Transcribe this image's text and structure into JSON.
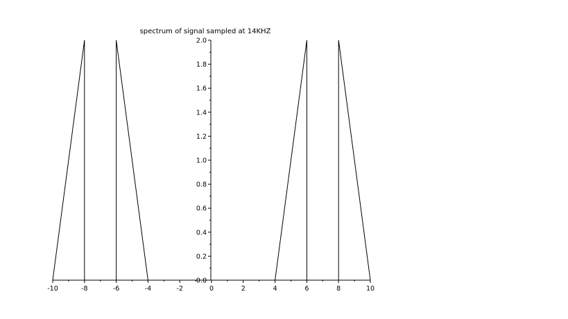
{
  "chart_data": {
    "type": "line",
    "title": "spectrum of signal sampled at 14KHZ",
    "xlabel": "",
    "ylabel": "",
    "xlim": [
      -10,
      10
    ],
    "ylim": [
      0,
      2
    ],
    "grid": false,
    "x_ticks": [
      -10,
      -8,
      -6,
      -4,
      -2,
      0,
      2,
      4,
      6,
      8,
      10
    ],
    "x_tick_labels": [
      "-10",
      "-8",
      "-6",
      "-4",
      "-2",
      "0",
      "2",
      "4",
      "6",
      "8",
      "10"
    ],
    "y_ticks": [
      0.0,
      0.2,
      0.4,
      0.6,
      0.8,
      1.0,
      1.2,
      1.4,
      1.6,
      1.8,
      2.0
    ],
    "y_tick_labels": [
      "0.0",
      "0.2",
      "0.4",
      "0.6",
      "0.8",
      "1.0",
      "1.2",
      "1.4",
      "1.6",
      "1.8",
      "2.0"
    ],
    "series": [
      {
        "x": [
          -10,
          -8,
          -8
        ],
        "y": [
          0,
          2,
          0
        ]
      },
      {
        "x": [
          -6,
          -6,
          -4
        ],
        "y": [
          0,
          2,
          0
        ]
      },
      {
        "x": [
          4,
          6,
          6
        ],
        "y": [
          0,
          2,
          0
        ]
      },
      {
        "x": [
          8,
          8,
          10
        ],
        "y": [
          0,
          2,
          0
        ]
      }
    ]
  }
}
